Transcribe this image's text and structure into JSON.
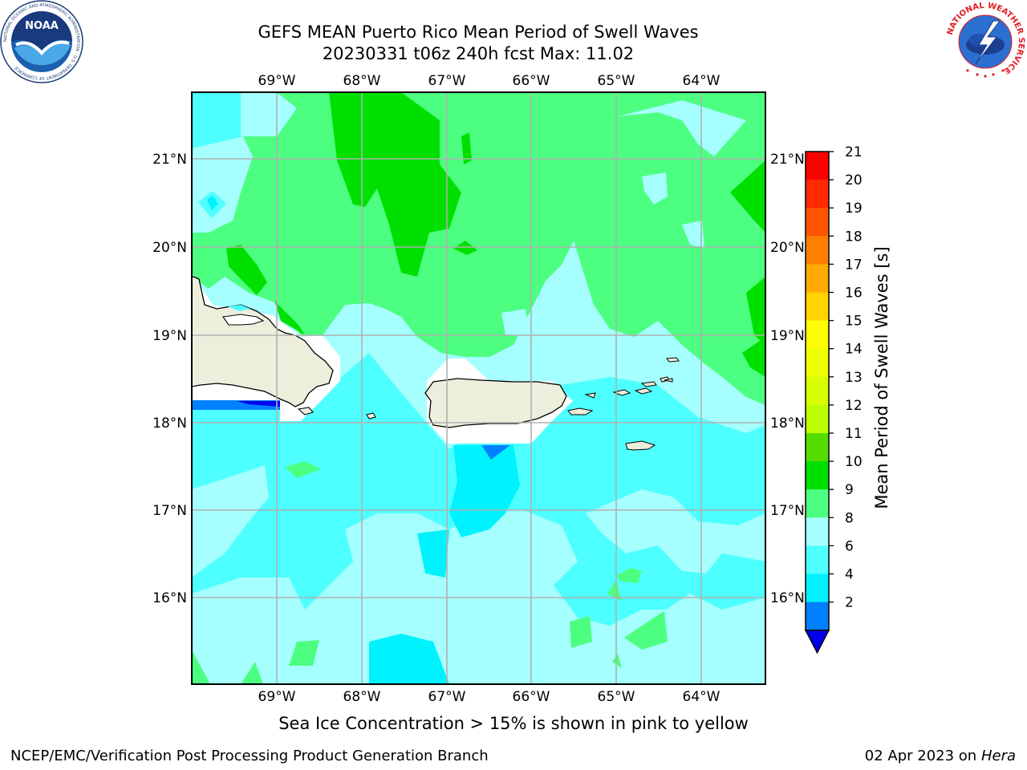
{
  "title_line1": "GEFS MEAN Puerto Rico Mean Period of Swell Waves",
  "title_line2": "20230331 t06z 240h fcst   Max: 11.02",
  "lon_labels": [
    "69°W",
    "68°W",
    "67°W",
    "66°W",
    "65°W",
    "64°W"
  ],
  "lat_labels": [
    "21°N",
    "20°N",
    "19°N",
    "18°N",
    "17°N",
    "16°N"
  ],
  "colorbar": {
    "label": "Mean Period of Swell Waves [s]",
    "ticks": [
      "21",
      "20",
      "19",
      "18",
      "17",
      "16",
      "15",
      "14",
      "13",
      "12",
      "11",
      "10",
      "9",
      "8",
      "6",
      "4",
      "2"
    ],
    "colors": [
      "#ff0000",
      "#ff2a00",
      "#ff5500",
      "#ff8000",
      "#ffaa00",
      "#ffd400",
      "#ffff00",
      "#eeff00",
      "#d7ff00",
      "#bbff00",
      "#55dd00",
      "#00e000",
      "#4dff80",
      "#a6ffff",
      "#4dffff",
      "#00f2ff",
      "#0080ff"
    ],
    "under_color": "#0000ee"
  },
  "caption": "Sea Ice Concentration > 15% is shown in pink to yellow",
  "footer_left": "NCEP/EMC/Verification Post Processing Product Generation Branch",
  "footer_date": "02 Apr 2023 on ",
  "footer_host": "Hera",
  "logos": {
    "noaa_center": "NOAA",
    "noaa_ring": "NATIONAL OCEANIC AND ATMOSPHERIC ADMINISTRATION · U.S. DEPARTMENT OF COMMERCE",
    "nws_ring": "NATIONAL WEATHER SERVICE"
  }
}
